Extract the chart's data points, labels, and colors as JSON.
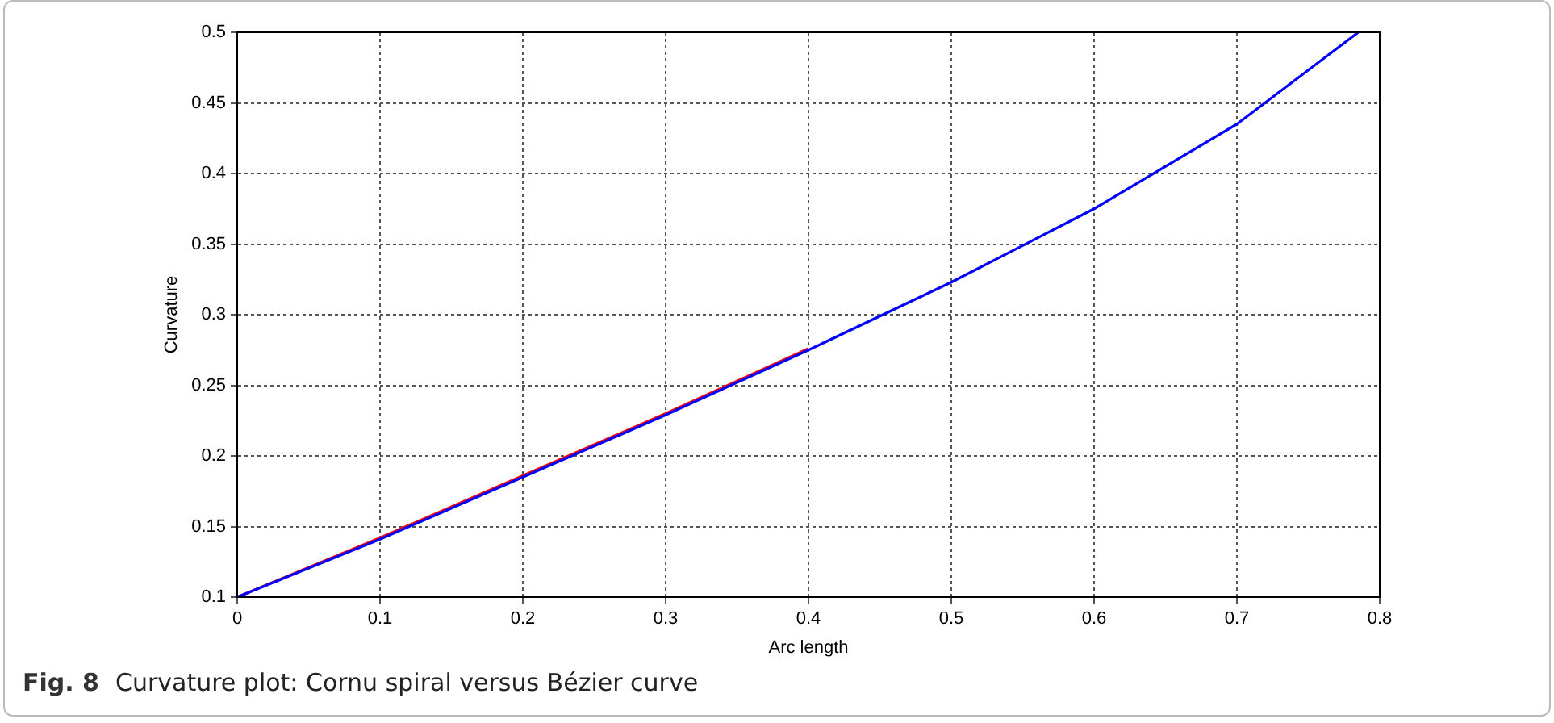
{
  "chart_data": {
    "type": "line",
    "xlabel": "Arc length",
    "ylabel": "Curvature",
    "annotations": [
      "Fig. 8",
      "Curvature plot: Cornu spiral versus Bézier curve"
    ],
    "xlim": [
      0,
      0.8
    ],
    "ylim": [
      0.1,
      0.5
    ],
    "xticks": [
      0,
      0.1,
      0.2,
      0.3,
      0.4,
      0.5,
      0.6,
      0.7,
      0.8
    ],
    "yticks": [
      0.1,
      0.15,
      0.2,
      0.25,
      0.3,
      0.35,
      0.4,
      0.45,
      0.5
    ],
    "grid": true,
    "legend": false,
    "marker": "none",
    "line_style": "solid",
    "series": [
      {
        "color": "#ff0000",
        "x": [
          0,
          0.1,
          0.2,
          0.3,
          0.4
        ],
        "values": [
          0.1,
          0.142,
          0.186,
          0.23,
          0.276
        ]
      },
      {
        "color": "#0000ff",
        "x": [
          0,
          0.1,
          0.2,
          0.3,
          0.4,
          0.5,
          0.6,
          0.7,
          0.785
        ],
        "values": [
          0.1,
          0.141,
          0.185,
          0.229,
          0.275,
          0.323,
          0.375,
          0.435,
          0.5
        ]
      }
    ]
  }
}
